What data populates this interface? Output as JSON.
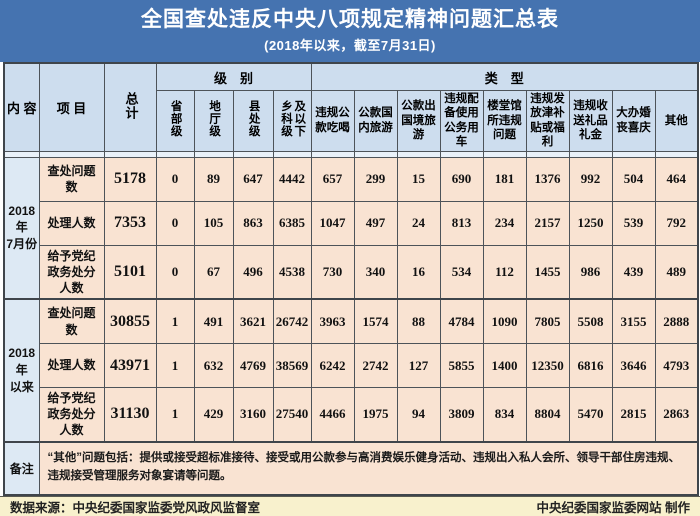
{
  "title": "全国查处违反中央八项规定精神问题汇总表",
  "subtitle": "(2018年以来，截至7月31日)",
  "table": {
    "headers": {
      "content": "内 容",
      "project": "项 目",
      "total": "总计",
      "level_group": "级　别",
      "type_group": "类　型",
      "levels": [
        "省部级",
        "地厅级",
        "县处级",
        "乡科级及以下"
      ],
      "types": [
        "违规公款吃喝",
        "公款国内旅游",
        "公款出国境旅游",
        "违规配备使用公务用车",
        "楼堂馆所违规问题",
        "违规发放津补贴或福利",
        "违规收送礼品礼金",
        "大办婚丧喜庆",
        "其他"
      ]
    },
    "groups": [
      {
        "period": "2018年\n7月份",
        "rows": [
          {
            "label": "查处问题数",
            "total": "5178",
            "values": [
              "0",
              "89",
              "647",
              "4442",
              "657",
              "299",
              "15",
              "690",
              "181",
              "1376",
              "992",
              "504",
              "464"
            ]
          },
          {
            "label": "处理人数",
            "total": "7353",
            "values": [
              "0",
              "105",
              "863",
              "6385",
              "1047",
              "497",
              "24",
              "813",
              "234",
              "2157",
              "1250",
              "539",
              "792"
            ]
          },
          {
            "label": "给予党纪政务处分人数",
            "total": "5101",
            "values": [
              "0",
              "67",
              "496",
              "4538",
              "730",
              "340",
              "16",
              "534",
              "112",
              "1455",
              "986",
              "439",
              "489"
            ]
          }
        ]
      },
      {
        "period": "2018年\n以来",
        "rows": [
          {
            "label": "查处问题数",
            "total": "30855",
            "values": [
              "1",
              "491",
              "3621",
              "26742",
              "3963",
              "1574",
              "88",
              "4784",
              "1090",
              "7805",
              "5508",
              "3155",
              "2888"
            ]
          },
          {
            "label": "处理人数",
            "total": "43971",
            "values": [
              "1",
              "632",
              "4769",
              "38569",
              "6242",
              "2742",
              "127",
              "5855",
              "1400",
              "12350",
              "6816",
              "3646",
              "4793"
            ]
          },
          {
            "label": "给予党纪政务处分人数",
            "total": "31130",
            "values": [
              "1",
              "429",
              "3160",
              "27540",
              "4466",
              "1975",
              "94",
              "3809",
              "834",
              "8804",
              "5470",
              "2815",
              "2863"
            ]
          }
        ]
      }
    ],
    "remark_label": "备注",
    "remark_text": "“其他”问题包括：提供或接受超标准接待、接受或用公款参与高消费娱乐健身活动、违规出入私人会所、领导干部住房违规、违规接受管理服务对象宴请等问题。"
  },
  "footer": {
    "source": "数据来源：中央纪委国家监委党风政风监督室",
    "credit": "中央纪委国家监委网站 制作"
  },
  "colors": {
    "title_bg": "#4573b0",
    "header_bg": "#cdddee",
    "period_bg": "#dde9f4",
    "data_bg": "#f9e3d2",
    "spacer_bg": "#e9f1f9",
    "footer_bg": "#f8f1cd",
    "border": "#4d5359"
  }
}
